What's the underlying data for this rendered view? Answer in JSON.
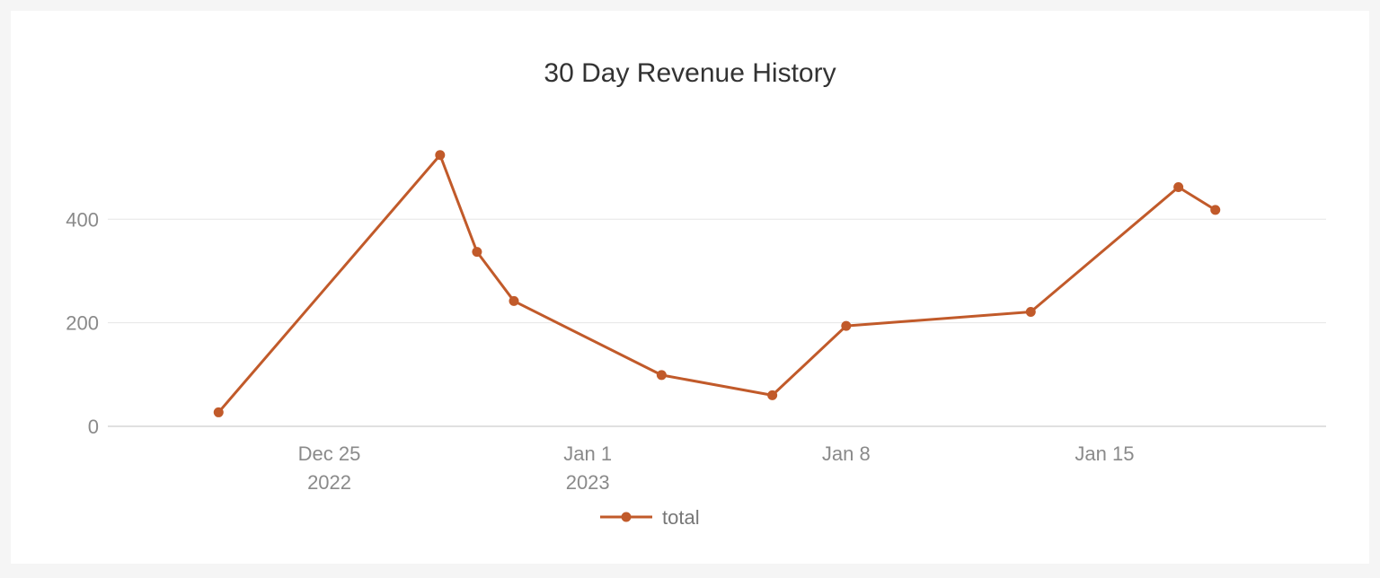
{
  "colors": {
    "page_background": "#f5f5f5",
    "card_background": "#ffffff",
    "series": "#c15a2a",
    "grid": "#e6e6e6",
    "axis_text": "#8a8a8a",
    "title_text": "#333333"
  },
  "chart_data": {
    "type": "line",
    "title": "30 Day Revenue History",
    "xlabel": "",
    "ylabel": "",
    "x_axis_type": "date",
    "xlim": [
      "2022-12-19",
      "2023-01-21"
    ],
    "ylim": [
      0,
      560
    ],
    "y_ticks": [
      0,
      200,
      400
    ],
    "x_ticks": [
      {
        "date": "2022-12-25",
        "label": "Dec 25",
        "sublabel": "2022"
      },
      {
        "date": "2023-01-01",
        "label": "Jan 1",
        "sublabel": "2023"
      },
      {
        "date": "2023-01-08",
        "label": "Jan 8",
        "sublabel": ""
      },
      {
        "date": "2023-01-15",
        "label": "Jan 15",
        "sublabel": ""
      }
    ],
    "grid": true,
    "legend_position": "bottom",
    "series": [
      {
        "name": "total",
        "color": "#c15a2a",
        "points": [
          {
            "x": "2022-12-22",
            "y": 27
          },
          {
            "x": "2022-12-28",
            "y": 524
          },
          {
            "x": "2022-12-29",
            "y": 337
          },
          {
            "x": "2022-12-30",
            "y": 242
          },
          {
            "x": "2023-01-03",
            "y": 99
          },
          {
            "x": "2023-01-06",
            "y": 60
          },
          {
            "x": "2023-01-08",
            "y": 194
          },
          {
            "x": "2023-01-13",
            "y": 221
          },
          {
            "x": "2023-01-17",
            "y": 462
          },
          {
            "x": "2023-01-18",
            "y": 418
          }
        ]
      }
    ]
  }
}
